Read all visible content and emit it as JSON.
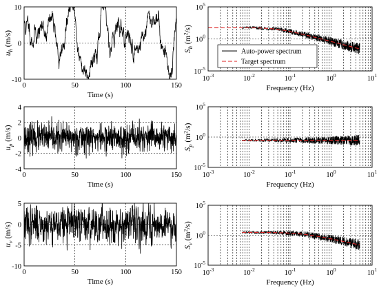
{
  "chart_data": [
    {
      "type": "line",
      "panel": "u_h time history",
      "xlabel": "Time (s)",
      "ylabel": "u_h (m/s)",
      "ylabel_main": "u",
      "ylabel_sub": "h",
      "ylabel_unit": " (m/s)",
      "xlim": [
        0,
        150
      ],
      "ylim": [
        -10,
        10
      ],
      "xticks": [
        "0",
        "50",
        "100",
        "150"
      ],
      "yticks": [
        "-10",
        "0",
        "10"
      ],
      "grid": true,
      "series": [
        {
          "mean": 2,
          "std": 5.5,
          "smooth": 0.93,
          "seed": 11,
          "anchors": [
            [
              0,
              5
            ],
            [
              8,
              3
            ],
            [
              20,
              4
            ],
            [
              30,
              6
            ],
            [
              35,
              -6
            ],
            [
              40,
              2
            ],
            [
              45,
              9
            ],
            [
              50,
              8
            ],
            [
              55,
              -6
            ],
            [
              60,
              -7
            ],
            [
              70,
              -2
            ],
            [
              78,
              8
            ],
            [
              85,
              0
            ],
            [
              90,
              6
            ],
            [
              100,
              2
            ],
            [
              110,
              -2
            ],
            [
              120,
              4
            ],
            [
              130,
              8
            ],
            [
              140,
              -5
            ],
            [
              145,
              -8
            ],
            [
              150,
              8
            ]
          ]
        }
      ]
    },
    {
      "type": "line",
      "panel": "S_h spectrum",
      "xlabel": "Frequency (Hz)",
      "ylabel": "S_h (m^2/s)",
      "ylabel_main": "S",
      "ylabel_sub": "h",
      "xscale": "log",
      "yscale": "log",
      "xlim": [
        0.001,
        10
      ],
      "ylim": [
        1e-05,
        100000
      ],
      "xticks": [
        {
          "base": "10",
          "exp": "-3"
        },
        {
          "base": "10",
          "exp": "-2"
        },
        {
          "base": "10",
          "exp": "-1"
        },
        {
          "base": "10",
          "exp": "0"
        },
        {
          "base": "10",
          "exp": "1"
        }
      ],
      "yticks": [
        {
          "base": "10",
          "exp": "-5"
        },
        {
          "base": "10",
          "exp": "0"
        },
        {
          "base": "10",
          "exp": "5"
        }
      ],
      "grid": true,
      "legend_position": "center-right",
      "series": [
        {
          "name": "Auto-power spectrum",
          "color": "#000000",
          "f_start": 0.0067,
          "f_end": 5,
          "level": 60,
          "fc": 0.05,
          "slope": 1.67,
          "scatter": 2.5
        },
        {
          "name": "Target spectrum",
          "color": "#dd2222",
          "dash": "6,3",
          "f_start": 0.001,
          "f_end": 5,
          "level": 60,
          "fc": 0.05,
          "slope": 1.67
        }
      ]
    },
    {
      "type": "line",
      "panel": "u_p time history",
      "xlabel": "Time (s)",
      "ylabel": "u_p (m/s)",
      "ylabel_main": "u",
      "ylabel_sub": "p",
      "ylabel_unit": " (m/s)",
      "xlim": [
        0,
        150
      ],
      "ylim": [
        -4,
        4
      ],
      "xticks": [
        "0",
        "50",
        "100",
        "150"
      ],
      "yticks": [
        "-4",
        "-2",
        "0",
        "2",
        "4"
      ],
      "grid": true,
      "series": [
        {
          "mean": 0,
          "std": 0.9,
          "smooth": 0.05,
          "seed": 23
        }
      ]
    },
    {
      "type": "line",
      "panel": "S_p spectrum",
      "xlabel": "Frequency (Hz)",
      "ylabel": "S_p (m^2/s)",
      "ylabel_main": "S",
      "ylabel_sub": "p",
      "xscale": "log",
      "yscale": "log",
      "xlim": [
        0.001,
        10
      ],
      "ylim": [
        1e-05,
        100000
      ],
      "xticks": [
        {
          "base": "10",
          "exp": "-3"
        },
        {
          "base": "10",
          "exp": "-2"
        },
        {
          "base": "10",
          "exp": "-1"
        },
        {
          "base": "10",
          "exp": "0"
        },
        {
          "base": "10",
          "exp": "1"
        }
      ],
      "yticks": [
        {
          "base": "10",
          "exp": "-5"
        },
        {
          "base": "10",
          "exp": "0"
        },
        {
          "base": "10",
          "exp": "5"
        }
      ],
      "grid": true,
      "series": [
        {
          "name": "Auto-power spectrum",
          "color": "#000000",
          "f_start": 0.0067,
          "f_end": 5,
          "level": 0.3,
          "fc": 0,
          "slope": 0,
          "scatter": 2.5
        },
        {
          "name": "Target spectrum",
          "color": "#dd2222",
          "dash": "6,3",
          "f_start": 0.0067,
          "f_end": 5,
          "level": 0.3,
          "fc": 0,
          "slope": 0
        }
      ]
    },
    {
      "type": "line",
      "panel": "u_v time history",
      "xlabel": "Time (s)",
      "ylabel": "u_v (m/s)",
      "ylabel_main": "u",
      "ylabel_sub": "v",
      "ylabel_unit": " (m/s)",
      "xlim": [
        0,
        150
      ],
      "ylim": [
        -10,
        5
      ],
      "xticks": [
        "0",
        "50",
        "100",
        "150"
      ],
      "yticks": [
        "-10",
        "-5",
        "0",
        "5"
      ],
      "grid": true,
      "series": [
        {
          "mean": 0,
          "std": 2.2,
          "smooth": 0.35,
          "seed": 37
        }
      ]
    },
    {
      "type": "line",
      "panel": "S_v spectrum",
      "xlabel": "Frequency (Hz)",
      "ylabel": "S_v (m^2/s)",
      "ylabel_main": "S",
      "ylabel_sub": "v",
      "xscale": "log",
      "yscale": "log",
      "xlim": [
        0.001,
        10
      ],
      "ylim": [
        1e-05,
        100000
      ],
      "xticks": [
        {
          "base": "10",
          "exp": "-3"
        },
        {
          "base": "10",
          "exp": "-2"
        },
        {
          "base": "10",
          "exp": "-1"
        },
        {
          "base": "10",
          "exp": "0"
        },
        {
          "base": "10",
          "exp": "1"
        }
      ],
      "yticks": [
        {
          "base": "10",
          "exp": "-5"
        },
        {
          "base": "10",
          "exp": "0"
        },
        {
          "base": "10",
          "exp": "5"
        }
      ],
      "grid": true,
      "series": [
        {
          "name": "Auto-power spectrum",
          "color": "#000000",
          "f_start": 0.0067,
          "f_end": 5,
          "level": 3,
          "fc": 0.2,
          "slope": 1.5,
          "scatter": 2.5
        },
        {
          "name": "Target spectrum",
          "color": "#dd2222",
          "dash": "6,3",
          "f_start": 0.0067,
          "f_end": 5,
          "level": 3,
          "fc": 0.2,
          "slope": 1.5
        }
      ]
    }
  ],
  "legend": {
    "auto_label": "Auto-power spectrum",
    "target_label": "Target spectrum"
  }
}
